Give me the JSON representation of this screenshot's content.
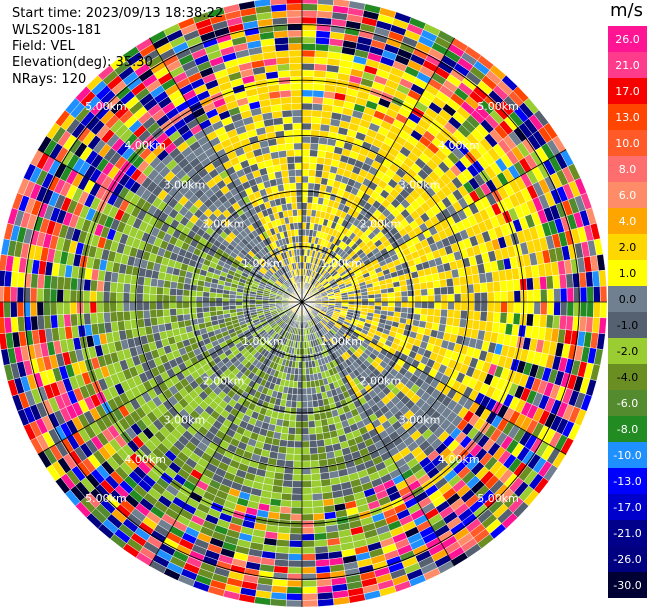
{
  "info": {
    "start_time": "Start time: 2023/09/13 18:38:22",
    "site": "WLS200s-181",
    "field": "Field: VEL",
    "elevation": "Elevation(deg): 35.30",
    "nrays": "NRays: 120"
  },
  "chart_data": {
    "type": "heatmap",
    "subtype": "polar-ppi",
    "field": "VEL",
    "units": "m/s",
    "n_rays": 120,
    "range_rings_km": [
      1.0,
      2.0,
      3.0,
      4.0,
      5.0
    ],
    "range_ring_labels": [
      "1.00km",
      "2.00km",
      "3.00km",
      "4.00km",
      "5.00km"
    ],
    "max_range_km": 5.5,
    "colorbar": {
      "title": "m/s",
      "ticks": [
        "26.0",
        "21.0",
        "17.0",
        "13.0",
        "10.0",
        "8.0",
        "6.0",
        "4.0",
        "2.0",
        "1.0",
        "0.0",
        "-1.0",
        "-2.0",
        "-4.0",
        "-6.0",
        "-8.0",
        "-10.0",
        "-13.0",
        "-17.0",
        "-21.0",
        "-26.0",
        "-30.0"
      ],
      "colors": [
        "#ff1493",
        "#ff3c8c",
        "#f70000",
        "#ff4500",
        "#ff5a28",
        "#ff6e6e",
        "#ff8c69",
        "#ffa500",
        "#ffd700",
        "#ffff00",
        "#708090",
        "#556070",
        "#9acd32",
        "#6b8e23",
        "#558b2f",
        "#228b22",
        "#1e90ff",
        "#0000ff",
        "#0000cd",
        "#00008b",
        "#000080",
        "#000033"
      ]
    }
  }
}
